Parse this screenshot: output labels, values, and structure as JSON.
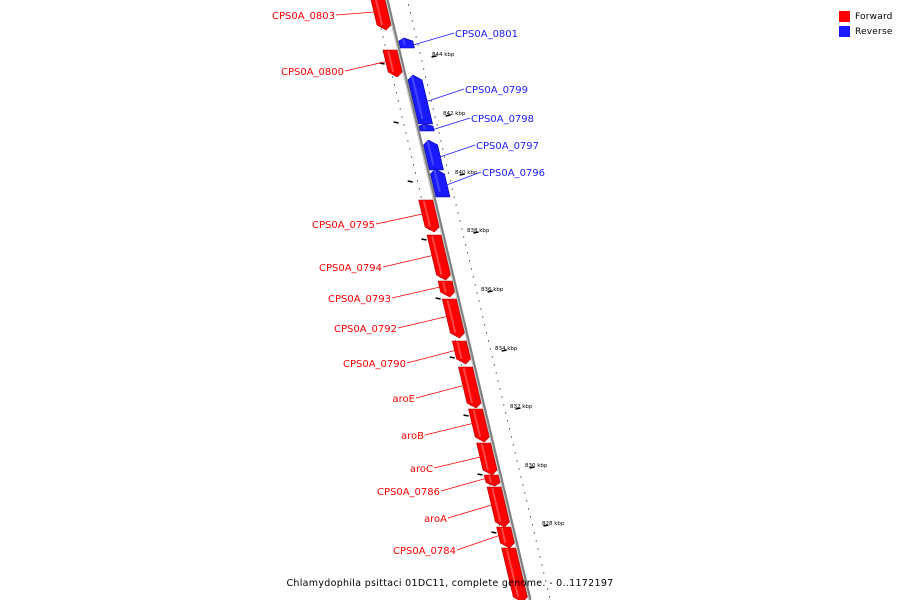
{
  "legend": {
    "forward_label": "Forward",
    "reverse_label": "Reverse",
    "forward_color": "#ff0000",
    "reverse_color": "#1a1aff"
  },
  "caption": "Chlamydophila psittaci 01DC11, complete genome. - 0..1172197",
  "colors": {
    "backbone": "#808080",
    "tick": "#000000"
  },
  "ticks": [
    {
      "label": "844 kbp"
    },
    {
      "label": "842 kbp"
    },
    {
      "label": "840 kbp"
    },
    {
      "label": "838 kbp"
    },
    {
      "label": "836 kbp"
    },
    {
      "label": "834 kbp"
    },
    {
      "label": "832 kbp"
    },
    {
      "label": "830 kbp"
    },
    {
      "label": "828 kbp"
    }
  ],
  "genes": [
    {
      "name": "CPS0A_0803",
      "strand": "forward"
    },
    {
      "name": "CPS0A_0801",
      "strand": "reverse"
    },
    {
      "name": "CPS0A_0800",
      "strand": "forward"
    },
    {
      "name": "CPS0A_0799",
      "strand": "reverse"
    },
    {
      "name": "CPS0A_0798",
      "strand": "reverse"
    },
    {
      "name": "CPS0A_0797",
      "strand": "reverse"
    },
    {
      "name": "CPS0A_0796",
      "strand": "reverse"
    },
    {
      "name": "CPS0A_0795",
      "strand": "forward"
    },
    {
      "name": "CPS0A_0794",
      "strand": "forward"
    },
    {
      "name": "CPS0A_0793",
      "strand": "forward"
    },
    {
      "name": "CPS0A_0792",
      "strand": "forward"
    },
    {
      "name": "CPS0A_0790",
      "strand": "forward"
    },
    {
      "name": "aroE",
      "strand": "forward"
    },
    {
      "name": "aroB",
      "strand": "forward"
    },
    {
      "name": "aroC",
      "strand": "forward"
    },
    {
      "name": "CPS0A_0786",
      "strand": "forward"
    },
    {
      "name": "aroA",
      "strand": "forward"
    },
    {
      "name": "CPS0A_0784",
      "strand": "forward"
    }
  ]
}
